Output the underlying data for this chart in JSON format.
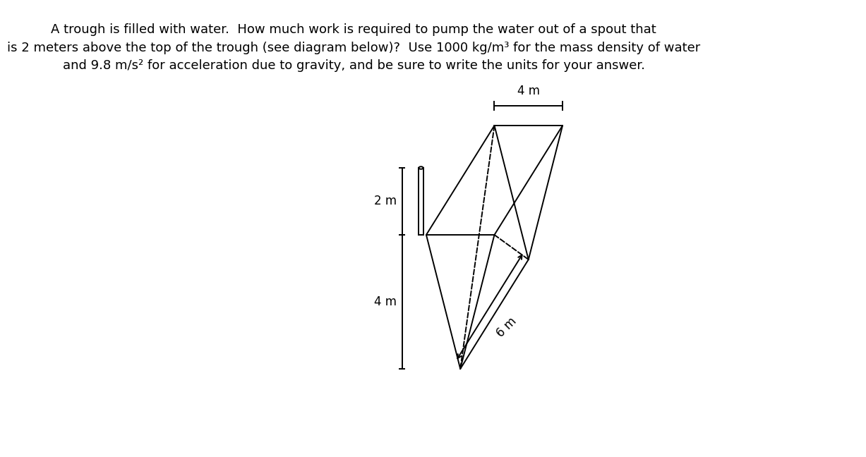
{
  "title_line1": "A trough is filled with water.  How much work is required to pump the water out of a spout that",
  "title_line2": "is 2 meters above the top of the trough (see diagram below)?  Use 1000 kg/m³ for the mass density of water",
  "title_line3": "and 9.8 m/s² for acceleration due to gravity, and be sure to write the units for your answer.",
  "bg_color": "#ffffff",
  "line_color": "#000000",
  "label_2m": "2 m",
  "label_4m_top": "4 m",
  "label_4m_left": "4 m",
  "label_6m": "6 m",
  "title_fontsize": 13.0,
  "label_fontsize": 12.0,
  "lw": 1.4
}
